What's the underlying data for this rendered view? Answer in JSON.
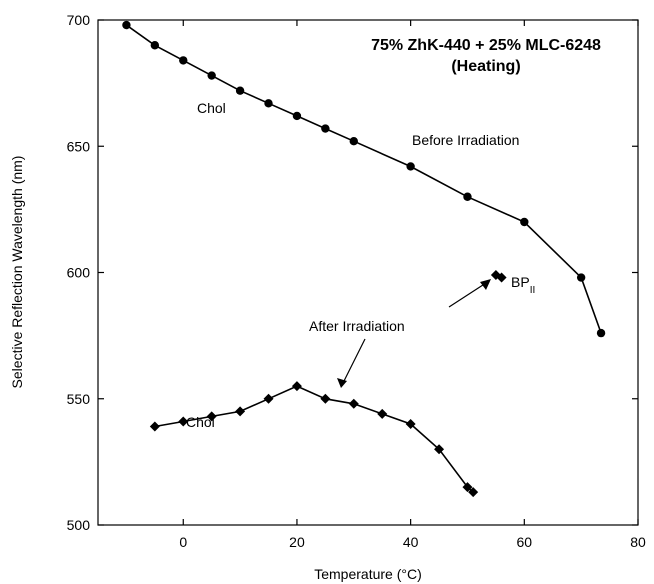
{
  "chart_data": {
    "type": "line",
    "title_line1": "75% ZhK-440 + 25% MLC-6248",
    "title_line2": "(Heating)",
    "xlabel": "Temperature  (°C)",
    "ylabel": "Selective Reflection Wavelength  (nm)",
    "xlim": [
      -15,
      80
    ],
    "ylim": [
      500,
      700
    ],
    "x_ticks": [
      0,
      20,
      40,
      60,
      80
    ],
    "y_ticks": [
      500,
      550,
      600,
      650,
      700
    ],
    "grid": false,
    "series": [
      {
        "marker": "circle",
        "points": [
          [
            -10,
            698
          ],
          [
            -5,
            690
          ],
          [
            0,
            684
          ],
          [
            5,
            678
          ],
          [
            10,
            672
          ],
          [
            15,
            667
          ],
          [
            20,
            662
          ],
          [
            25,
            657
          ],
          [
            30,
            652
          ],
          [
            40,
            642
          ],
          [
            50,
            630
          ],
          [
            60,
            620
          ],
          [
            70,
            598
          ],
          [
            73.5,
            576
          ]
        ]
      },
      {
        "marker": "diamond",
        "points": [
          [
            -5,
            539
          ],
          [
            0,
            541
          ],
          [
            5,
            543
          ],
          [
            10,
            545
          ],
          [
            15,
            550
          ],
          [
            20,
            555
          ],
          [
            25,
            550
          ],
          [
            30,
            548
          ],
          [
            35,
            544
          ],
          [
            40,
            540
          ],
          [
            45,
            530
          ],
          [
            50,
            515
          ],
          [
            51,
            513
          ]
        ]
      },
      {
        "marker": "diamond",
        "points": [
          [
            55,
            599
          ],
          [
            56,
            598
          ]
        ]
      }
    ],
    "annotations": {
      "chol_upper": "Chol",
      "before": "Before Irradiation",
      "after": "After Irradiation",
      "chol_lower": "Chol",
      "bp_main": "BP",
      "bp_sub": "II"
    }
  }
}
